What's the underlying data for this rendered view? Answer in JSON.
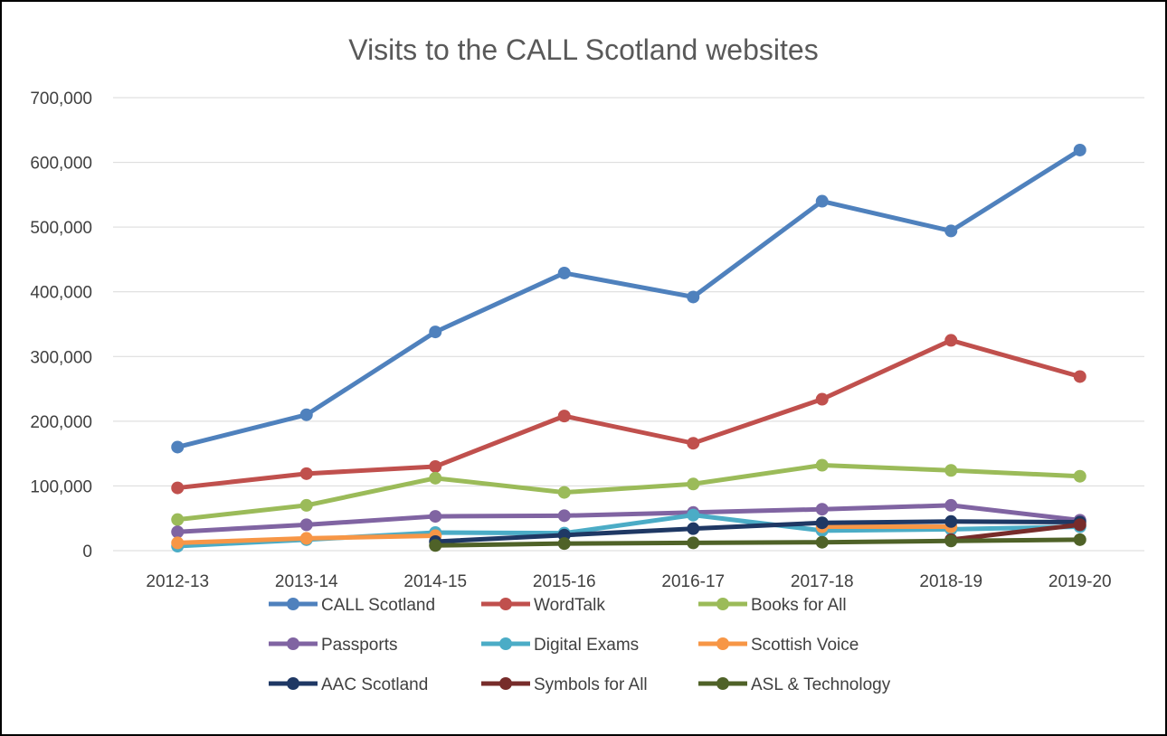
{
  "chart_data": {
    "type": "line",
    "title": "Visits to the CALL Scotland websites",
    "xlabel": "",
    "ylabel": "",
    "categories": [
      "2012-13",
      "2013-14",
      "2014-15",
      "2015-16",
      "2016-17",
      "2017-18",
      "2018-19",
      "2019-20"
    ],
    "ylim": [
      0,
      700000
    ],
    "yticks": [
      "0",
      "100,000",
      "200,000",
      "300,000",
      "400,000",
      "500,000",
      "600,000",
      "700,000"
    ],
    "ytick_values": [
      0,
      100000,
      200000,
      300000,
      400000,
      500000,
      600000,
      700000
    ],
    "grid": true,
    "legend_position": "bottom",
    "series": [
      {
        "name": "CALL Scotland",
        "color": "#4f81bd",
        "values": [
          160000,
          210000,
          338000,
          429000,
          392000,
          540000,
          494000,
          619000
        ]
      },
      {
        "name": "WordTalk",
        "color": "#c0504d",
        "values": [
          97000,
          119000,
          130000,
          208000,
          166000,
          234000,
          325000,
          269000
        ]
      },
      {
        "name": "Books for All",
        "color": "#9bbb59",
        "values": [
          48000,
          70000,
          112000,
          90000,
          103000,
          132000,
          124000,
          115000
        ]
      },
      {
        "name": "Passports",
        "color": "#8064a2",
        "values": [
          29000,
          40000,
          53000,
          54000,
          59000,
          64000,
          70000,
          47000
        ]
      },
      {
        "name": "Digital Exams",
        "color": "#4bacc6",
        "values": [
          7000,
          17000,
          28000,
          27000,
          55000,
          31000,
          33000,
          37000
        ]
      },
      {
        "name": "Scottish Voice",
        "color": "#f79646",
        "values": [
          12000,
          19000,
          23000,
          null,
          null,
          37000,
          37000,
          null
        ]
      },
      {
        "name": "AAC Scotland",
        "color": "#1f3864",
        "values": [
          null,
          null,
          14000,
          24000,
          34000,
          43000,
          45000,
          44000
        ]
      },
      {
        "name": "Symbols for All",
        "color": "#772c2a",
        "values": [
          null,
          null,
          null,
          null,
          null,
          null,
          17000,
          40000
        ]
      },
      {
        "name": "ASL & Technology",
        "color": "#4f6228",
        "values": [
          null,
          null,
          8000,
          11000,
          12000,
          13000,
          15000,
          17000
        ]
      }
    ]
  }
}
